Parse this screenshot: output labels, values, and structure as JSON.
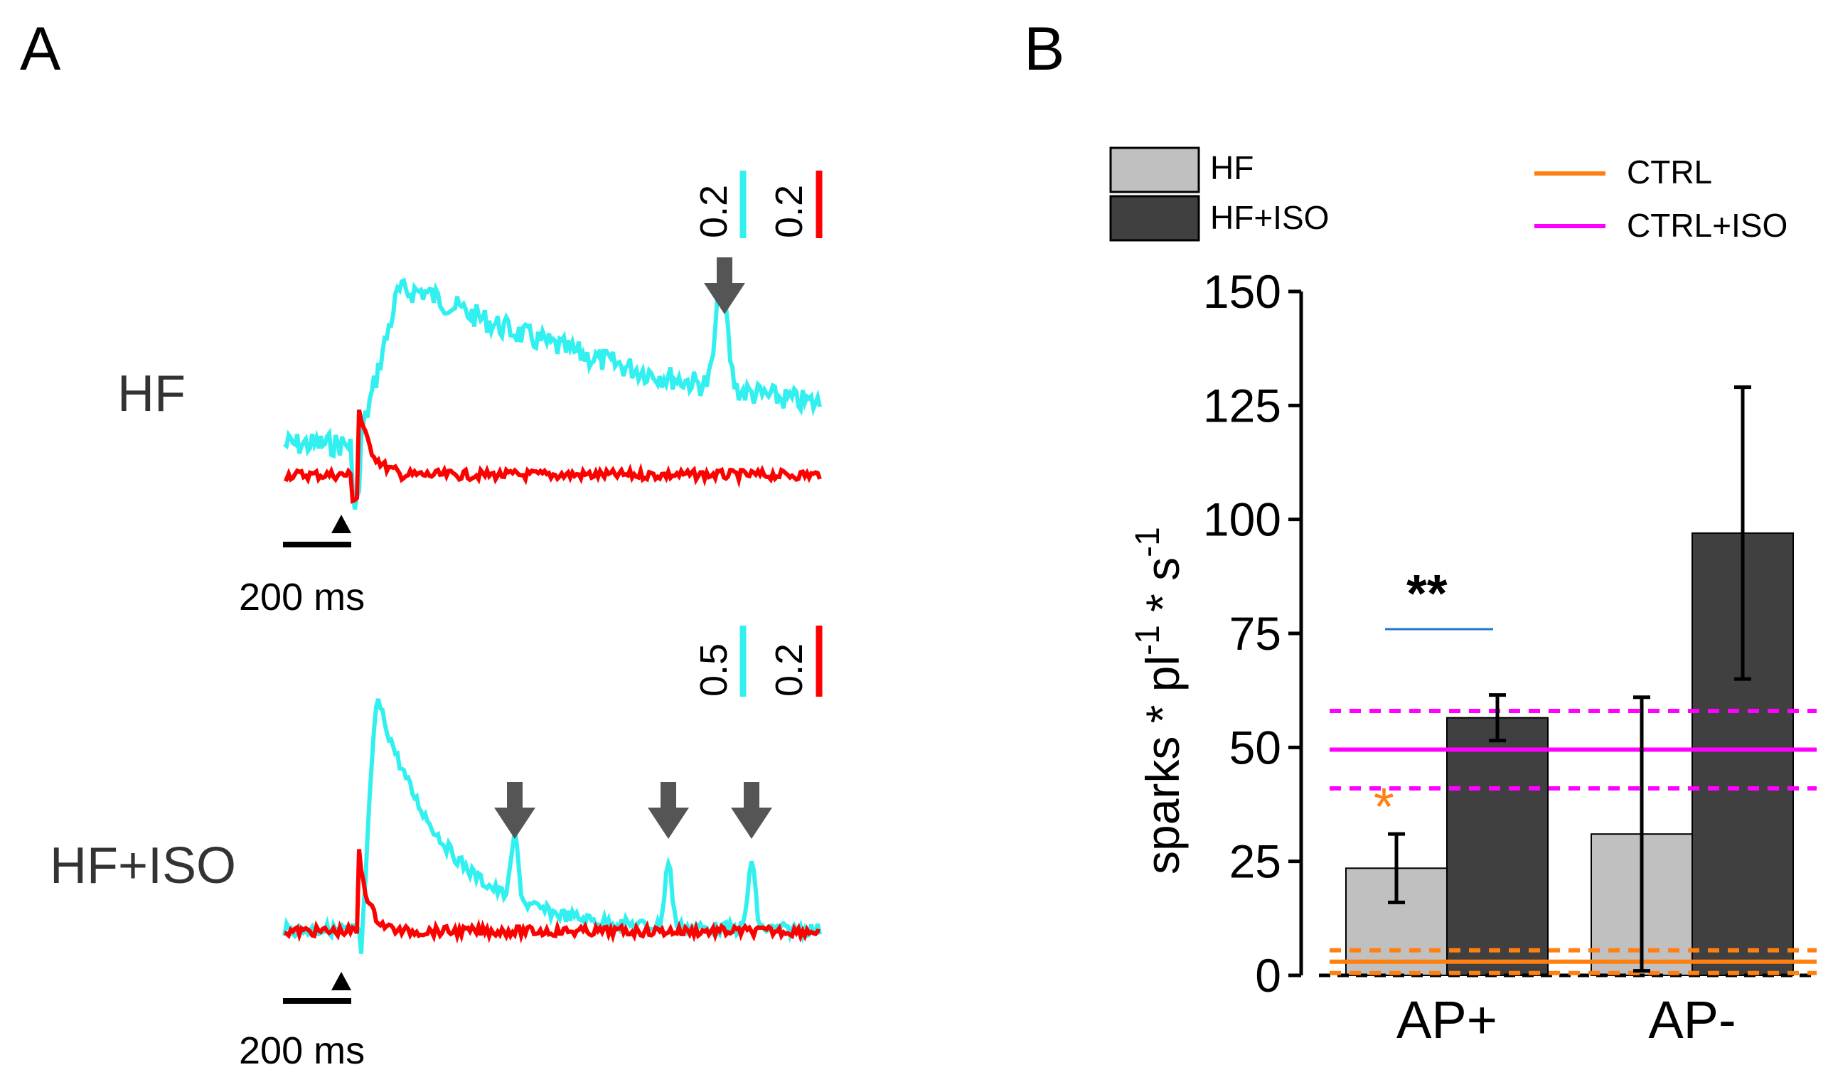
{
  "panels": {
    "a_letter": "A",
    "b_letter": "B"
  },
  "panel_a": {
    "traces": [
      {
        "label": "HF",
        "scale_bar_time": "200 ms",
        "cyan_scale": "0.2",
        "red_scale": "0.2",
        "arrow_count": 1
      },
      {
        "label": "HF+ISO",
        "scale_bar_time": "200 ms",
        "cyan_scale": "0.5",
        "red_scale": "0.2",
        "arrow_count": 3
      }
    ],
    "colors": {
      "cyan": "#33f0f0",
      "red": "#ff0000",
      "arrow": "#555555"
    }
  },
  "chart_data": {
    "type": "bar",
    "categories": [
      "AP+",
      "AP-"
    ],
    "series": [
      {
        "name": "HF",
        "values": [
          23.5,
          31
        ],
        "errors": [
          7.5,
          30
        ],
        "color": "#c0c0c0"
      },
      {
        "name": "HF+ISO",
        "values": [
          56.5,
          97
        ],
        "errors": [
          5,
          32
        ],
        "color": "#404040"
      }
    ],
    "reference_lines": [
      {
        "name": "CTRL",
        "value": 3,
        "band": [
          0.5,
          5.5
        ],
        "color": "#ff8010"
      },
      {
        "name": "CTRL+ISO",
        "value": 49.5,
        "band": [
          41,
          58
        ],
        "color": "#ff00ff"
      }
    ],
    "ylabel": "sparks * pl-1 * s-1",
    "ylim": [
      0,
      150
    ],
    "yticks": [
      "0",
      "25",
      "50",
      "75",
      "100",
      "125",
      "150"
    ],
    "annotations": [
      {
        "text": "**",
        "color": "#000000"
      },
      {
        "text": "*",
        "color": "#ff8010"
      }
    ],
    "legend_placement": "top"
  }
}
